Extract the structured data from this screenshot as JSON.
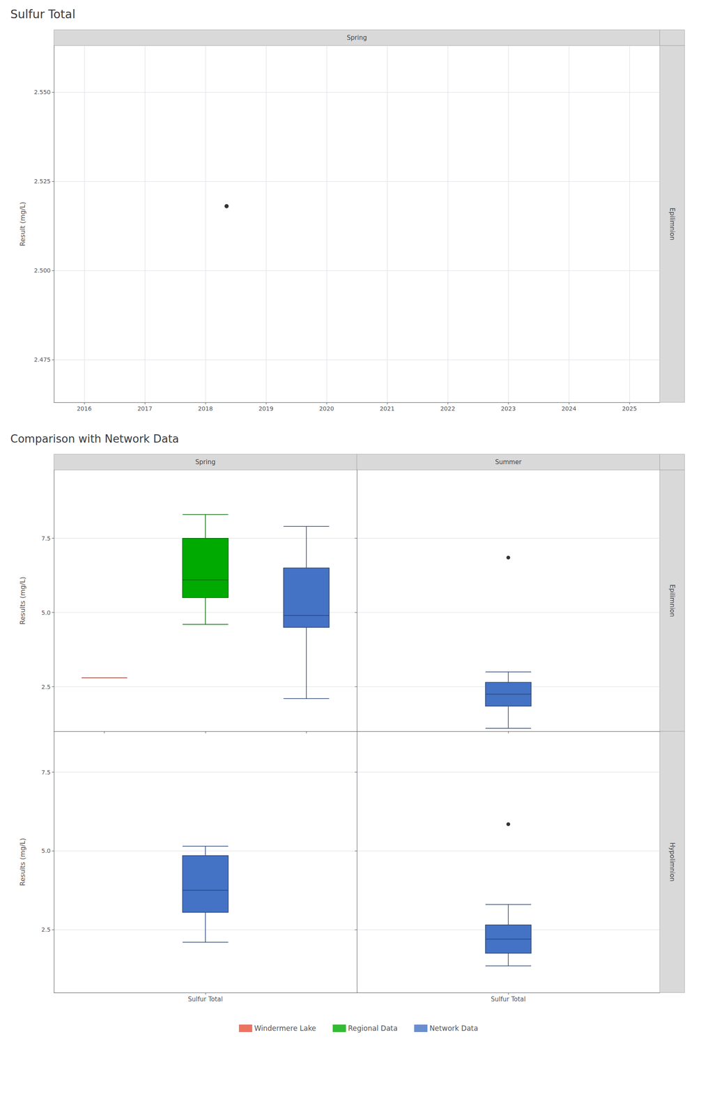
{
  "chart_data": [
    {
      "type": "scatter",
      "title": "Sulfur Total",
      "column_label": "Spring",
      "row_label": "Epilimnion",
      "x": [
        2018.35
      ],
      "values": [
        2.518
      ],
      "color": "black",
      "xlim": [
        2015.5,
        2025.5
      ],
      "xticks": [
        2016,
        2017,
        2018,
        2019,
        2020,
        2021,
        2022,
        2023,
        2024,
        2025
      ],
      "ylim": [
        2.463,
        2.563
      ],
      "yticks": [
        2.475,
        {
          "value": 2.5,
          "label": "2.500"
        },
        2.525,
        {
          "value": 2.55,
          "label": "2.550"
        }
      ],
      "ylabel": "Result (mg/L)",
      "grid": true
    },
    {
      "type": "boxplot",
      "title": "Comparison with Network Data",
      "column_label": "Spring",
      "categories": [
        null,
        null,
        null
      ],
      "series": [
        {
          "name": "Windermere Lake",
          "color": "#e8503a",
          "values": [
            {
              "whislo": 2.8,
              "q1": 2.8,
              "median": 2.8,
              "q3": 2.8,
              "whishi": 2.8
            },
            null,
            null
          ]
        },
        {
          "name": "Regional Data",
          "color": "#00aa00",
          "values": [
            null,
            {
              "whislo": 4.6,
              "q1": 5.5,
              "median": 6.1,
              "q3": 7.5,
              "whishi": 8.3
            },
            null
          ]
        },
        {
          "name": "Network Data",
          "color": "#4472c4",
          "values": [
            null,
            null,
            {
              "whislo": 2.1,
              "q1": 4.5,
              "median": 4.9,
              "q3": 6.5,
              "whishi": 7.9
            }
          ]
        }
      ],
      "ylim": [
        1.0,
        9.8
      ],
      "yticks": [
        2.5,
        {
          "value": 5,
          "label": "5.0"
        },
        7.5
      ],
      "ylabel": "Results (mg/L)",
      "grid": true,
      "legend": "bottom",
      "tick_labels": "y"
    },
    {
      "type": "boxplot",
      "column_label": "Summer",
      "row_label": "Epilimnion",
      "categories": [
        null
      ],
      "series": [
        {
          "name": "Network Data",
          "color": "#4472c4",
          "values": [
            {
              "whislo": 1.1,
              "q1": 1.85,
              "median": 2.25,
              "q3": 2.65,
              "whishi": 3.0
            }
          ],
          "outliers": [
            [
              6.85
            ]
          ]
        }
      ],
      "ylim": [
        1.0,
        9.8
      ],
      "yticks": [
        2.5,
        {
          "value": 5,
          "label": "5.0"
        },
        7.5
      ],
      "grid": true,
      "legend": "bottom",
      "tick_labels": false
    },
    {
      "type": "boxplot",
      "categories": [
        "Sulfur Total"
      ],
      "series": [
        {
          "name": "Network Data",
          "color": "#4472c4",
          "values": [
            {
              "whislo": 2.1,
              "q1": 3.05,
              "median": 3.75,
              "q3": 4.85,
              "whishi": 5.15
            }
          ]
        }
      ],
      "ylim": [
        0.5,
        8.8
      ],
      "yticks": [
        2.5,
        {
          "value": 5,
          "label": "5.0"
        },
        7.5
      ],
      "ylabel": "Results (mg/L)",
      "grid": true,
      "legend": "bottom"
    },
    {
      "type": "boxplot",
      "row_label": "Hypolimnion",
      "categories": [
        "Sulfur Total"
      ],
      "series": [
        {
          "name": "Network Data",
          "color": "#4472c4",
          "values": [
            {
              "whislo": 1.35,
              "q1": 1.75,
              "median": 2.2,
              "q3": 2.65,
              "whishi": 3.3
            }
          ],
          "outliers": [
            [
              5.85
            ]
          ]
        }
      ],
      "ylim": [
        0.5,
        8.8
      ],
      "yticks": [
        2.5,
        {
          "value": 5,
          "label": "5.0"
        },
        7.5
      ],
      "grid": true,
      "legend": "bottom",
      "tick_labels": "x"
    }
  ]
}
